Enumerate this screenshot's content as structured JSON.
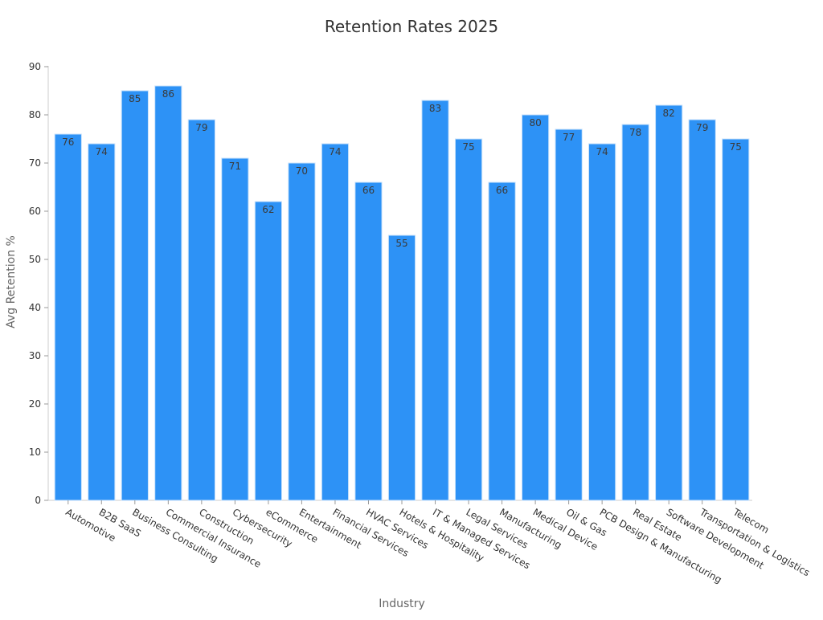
{
  "chart_data": {
    "type": "bar",
    "title": "Retention Rates 2025",
    "xlabel": "Industry",
    "ylabel": "Avg Retention %",
    "ylim": [
      0,
      90
    ],
    "yticks": [
      0,
      10,
      20,
      30,
      40,
      50,
      60,
      70,
      80,
      90
    ],
    "grid": false,
    "bar_color": "#2d92f6",
    "categories": [
      "Automotive",
      "B2B SaaS",
      "Business Consulting",
      "Commercial Insurance",
      "Construction",
      "Cybersecurity",
      "eCommerce",
      "Entertainment",
      "Financial Services",
      "HVAC Services",
      "Hotels & Hospitality",
      "IT & Managed Services",
      "Legal Services",
      "Manufacturing",
      "Medical Device",
      "Oil & Gas",
      "PCB Design & Manufacturing",
      "Real Estate",
      "Software Development",
      "Transportation & Logistics",
      "Telecom"
    ],
    "values": [
      76,
      74,
      85,
      86,
      79,
      71,
      62,
      70,
      74,
      66,
      55,
      83,
      75,
      66,
      80,
      77,
      74,
      78,
      82,
      79,
      75
    ]
  }
}
